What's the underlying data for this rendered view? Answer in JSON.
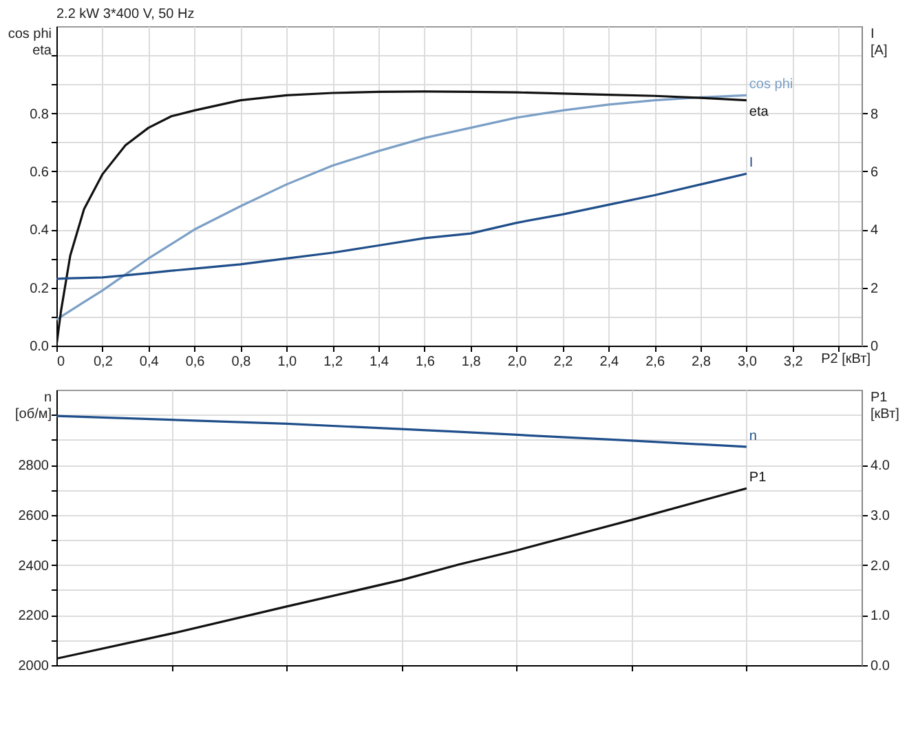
{
  "chart_data": [
    {
      "type": "line",
      "title": "2.2 kW   3*400 V, 50 Hz",
      "xlabel": "P2 [кВт]",
      "ylabel": "cos phi\neta",
      "y2label": "I\n[A]",
      "grid": true,
      "x": [
        0,
        0.02,
        0.06,
        0.12,
        0.2,
        0.3,
        0.4,
        0.5,
        0.6,
        0.8,
        1.0,
        1.2,
        1.4,
        1.6,
        1.8,
        2.0,
        2.2,
        2.4,
        2.6,
        2.8,
        3.0
      ],
      "xlim": [
        0,
        3.5
      ],
      "xticks": [
        0,
        {
          "value": 0.2,
          "label": "0,2"
        },
        {
          "value": 0.4,
          "label": "0,4"
        },
        {
          "value": 0.6,
          "label": "0,6"
        },
        {
          "value": 0.8,
          "label": "0,8"
        },
        {
          "value": 1,
          "label": "1,0"
        },
        {
          "value": 1.2,
          "label": "1,2"
        },
        {
          "value": 1.4,
          "label": "1,4"
        },
        {
          "value": 1.6,
          "label": "1,6"
        },
        {
          "value": 1.8,
          "label": "1,8"
        },
        {
          "value": 2,
          "label": "2,0"
        },
        {
          "value": 2.2,
          "label": "2,2"
        },
        {
          "value": 2.4,
          "label": "2,4"
        },
        {
          "value": 2.6,
          "label": "2,6"
        },
        {
          "value": 2.8,
          "label": "2,8"
        },
        {
          "value": 3,
          "label": "3,0"
        },
        {
          "value": 3.2,
          "label": "3,2"
        },
        {
          "value": 3.4,
          "label": null
        }
      ],
      "ylim": [
        0,
        1.1
      ],
      "yticks": [
        {
          "value": 0,
          "label": "0.0"
        },
        {
          "value": 0.1,
          "label": null
        },
        {
          "value": 0.2,
          "label": "0.2"
        },
        {
          "value": 0.3,
          "label": null
        },
        {
          "value": 0.4,
          "label": "0.4"
        },
        {
          "value": 0.5,
          "label": null
        },
        {
          "value": 0.6,
          "label": "0.6"
        },
        {
          "value": 0.7,
          "label": null
        },
        {
          "value": 0.8,
          "label": "0.8"
        },
        {
          "value": 0.9,
          "label": null
        },
        {
          "value": 1.0,
          "label": null
        }
      ],
      "y2lim": [
        0,
        11
      ],
      "y2ticks": [
        0,
        2,
        4,
        6,
        8
      ],
      "series": [
        {
          "name": "cos phi",
          "color": "#7b9fc6",
          "values": [
            0.09,
            0.1,
            0.12,
            0.15,
            0.19,
            0.245,
            0.3,
            0.35,
            0.4,
            0.48,
            0.555,
            0.62,
            0.67,
            0.715,
            0.75,
            0.785,
            0.81,
            0.83,
            0.845,
            0.855,
            0.862
          ]
        },
        {
          "name": "eta",
          "color": "#111111",
          "values": [
            0,
            0.12,
            0.31,
            0.47,
            0.59,
            0.69,
            0.75,
            0.79,
            0.81,
            0.845,
            0.862,
            0.87,
            0.874,
            0.875,
            0.874,
            0.872,
            0.868,
            0.864,
            0.86,
            0.853,
            0.845
          ]
        },
        {
          "name": "I",
          "color": "#1f4e8a",
          "axis": "y2",
          "values": [
            2.3,
            2.31,
            2.32,
            2.33,
            2.35,
            2.42,
            2.5,
            2.58,
            2.65,
            2.8,
            3.0,
            3.2,
            3.45,
            3.7,
            3.86,
            4.23,
            4.52,
            4.85,
            5.18,
            5.55,
            5.92
          ]
        }
      ]
    },
    {
      "type": "line",
      "ylabel": "n\n[об/м]",
      "y2label": "P1\n[кВт]",
      "grid": true,
      "tick_labels": "y",
      "x": [
        0,
        0.5,
        1.0,
        1.5,
        1.75,
        2.0,
        2.5,
        3.0
      ],
      "xlim": [
        0,
        3.5
      ],
      "xticks": [
        {
          "value": 0.5,
          "label": null
        },
        {
          "value": 1,
          "label": null
        },
        {
          "value": 1.5,
          "label": null
        },
        {
          "value": 2,
          "label": null
        },
        {
          "value": 2.5,
          "label": null
        },
        {
          "value": 3,
          "label": null
        }
      ],
      "ylim": [
        2000,
        3100
      ],
      "yticks": [
        2000,
        {
          "value": 2100,
          "label": null
        },
        2200,
        {
          "value": 2300,
          "label": null
        },
        2400,
        {
          "value": 2500,
          "label": null
        },
        2600,
        {
          "value": 2700,
          "label": null
        },
        2800,
        {
          "value": 2900,
          "label": null
        },
        {
          "value": 3000,
          "label": null
        }
      ],
      "y2lim": [
        0,
        5.5
      ],
      "y2ticks": [
        {
          "value": 0,
          "label": "0.0"
        },
        {
          "value": 1,
          "label": "1.0"
        },
        {
          "value": 2,
          "label": "2.0"
        },
        {
          "value": 3,
          "label": "3.0"
        },
        {
          "value": 4,
          "label": "4.0"
        }
      ],
      "series": [
        {
          "name": "n",
          "color": "#1f4e8a",
          "values": [
            2995,
            2980,
            2964,
            2943,
            2932,
            2920,
            2897,
            2872
          ]
        },
        {
          "name": "P1",
          "color": "#111111",
          "axis": "y2",
          "values": [
            0.13,
            0.63,
            1.17,
            1.7,
            2.01,
            2.29,
            2.9,
            3.53
          ]
        }
      ]
    }
  ]
}
